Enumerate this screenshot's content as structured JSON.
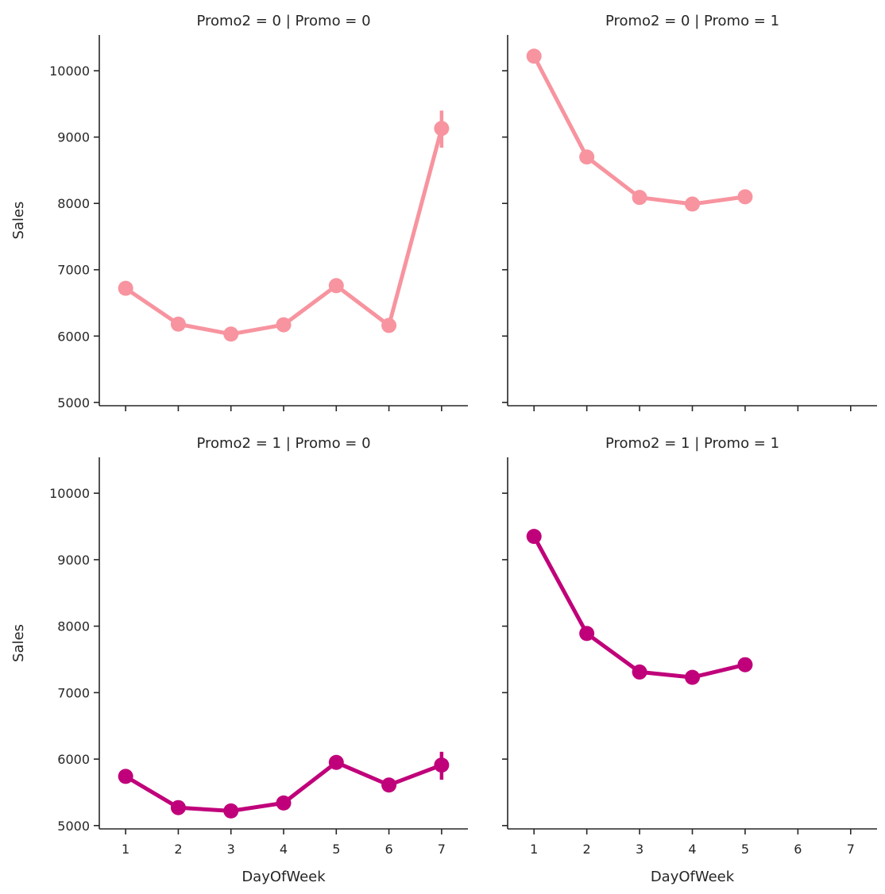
{
  "chart_data": {
    "type": "line",
    "layout": "2x2 facet grid, shared x and y axes",
    "x_label": "DayOfWeek",
    "y_label": "Sales",
    "x_ticks": [
      1,
      2,
      3,
      4,
      5,
      6,
      7
    ],
    "x_range": [
      0.5,
      7.5
    ],
    "y_ticks": [
      5000,
      6000,
      7000,
      8000,
      9000,
      10000
    ],
    "y_range": [
      4950,
      10540
    ],
    "grid": false,
    "legend": "none",
    "colors": {
      "promo2_0": "#f7949f",
      "promo2_1": "#c0007a"
    },
    "facets": [
      {
        "title": "Promo2 = 0 | Promo = 0",
        "color_key": "promo2_0",
        "x": [
          1,
          2,
          3,
          4,
          5,
          6,
          7
        ],
        "y": [
          6720,
          6180,
          6030,
          6170,
          6760,
          6160,
          9130
        ],
        "error_bars": [
          {
            "x": 7,
            "low": 8840,
            "high": 9400
          }
        ]
      },
      {
        "title": "Promo2 = 0 | Promo = 1",
        "color_key": "promo2_0",
        "x": [
          1,
          2,
          3,
          4,
          5
        ],
        "y": [
          10220,
          8700,
          8090,
          7990,
          8100
        ],
        "error_bars": []
      },
      {
        "title": "Promo2 = 1 | Promo = 0",
        "color_key": "promo2_1",
        "x": [
          1,
          2,
          3,
          4,
          5,
          6,
          7
        ],
        "y": [
          5740,
          5270,
          5220,
          5340,
          5950,
          5610,
          5910
        ],
        "error_bars": [
          {
            "x": 7,
            "low": 5690,
            "high": 6110
          }
        ]
      },
      {
        "title": "Promo2 = 1 | Promo = 1",
        "color_key": "promo2_1",
        "x": [
          1,
          2,
          3,
          4,
          5
        ],
        "y": [
          9350,
          7890,
          7310,
          7230,
          7420
        ],
        "error_bars": []
      }
    ]
  }
}
